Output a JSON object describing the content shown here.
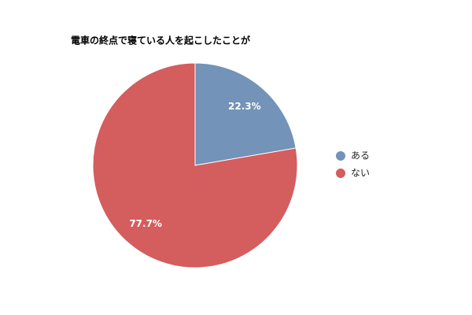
{
  "chart_data": {
    "type": "pie",
    "title": "電車の終点で寝ている人を起こしたことが",
    "categories": [
      "ある",
      "ない"
    ],
    "values": [
      22.3,
      77.7
    ],
    "value_labels": [
      "22.3%",
      "77.7%"
    ],
    "colors": [
      "#7393b8",
      "#d45d5d"
    ],
    "legend": "right"
  }
}
